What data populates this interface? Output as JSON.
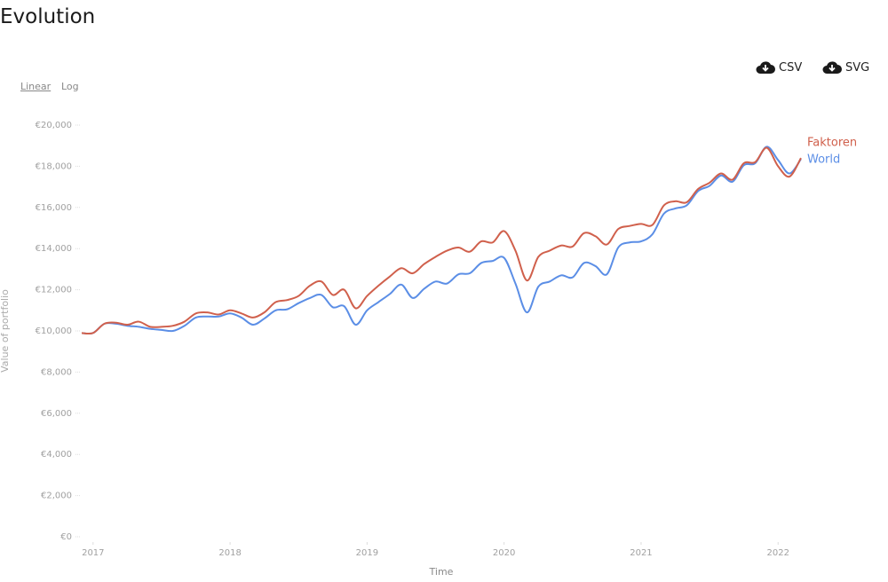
{
  "header": {
    "title": "Evolution"
  },
  "scale_options": [
    "Linear",
    "Log"
  ],
  "downloads": [
    "CSV",
    "SVG"
  ],
  "chart_data": {
    "type": "line",
    "x_label": "Time",
    "y_label": "Value of portfolio",
    "log_scale": false,
    "xlim": [
      2016.917,
      2022.167
    ],
    "xticks": [
      2017,
      2018,
      2019,
      2020,
      2021,
      2022
    ],
    "ylim": [
      0,
      20000
    ],
    "yticks": [
      {
        "value": 0,
        "label": "€0"
      },
      {
        "value": 2000,
        "label": "€2,000"
      },
      {
        "value": 4000,
        "label": "€4,000"
      },
      {
        "value": 6000,
        "label": "€6,000"
      },
      {
        "value": 8000,
        "label": "€8,000"
      },
      {
        "value": 10000,
        "label": "€10,000"
      },
      {
        "value": 12000,
        "label": "€12,000"
      },
      {
        "value": 14000,
        "label": "€14,000"
      },
      {
        "value": 16000,
        "label": "€16,000"
      },
      {
        "value": 18000,
        "label": "€18,000"
      },
      {
        "value": 20000,
        "label": "€20,000"
      }
    ],
    "x": [
      2016.917,
      2017,
      2017.083,
      2017.167,
      2017.25,
      2017.333,
      2017.417,
      2017.5,
      2017.583,
      2017.667,
      2017.75,
      2017.833,
      2017.917,
      2018,
      2018.083,
      2018.167,
      2018.25,
      2018.333,
      2018.417,
      2018.5,
      2018.583,
      2018.667,
      2018.75,
      2018.833,
      2018.917,
      2019,
      2019.083,
      2019.167,
      2019.25,
      2019.333,
      2019.417,
      2019.5,
      2019.583,
      2019.667,
      2019.75,
      2019.833,
      2019.917,
      2020,
      2020.083,
      2020.167,
      2020.25,
      2020.333,
      2020.417,
      2020.5,
      2020.583,
      2020.667,
      2020.75,
      2020.833,
      2020.917,
      2021,
      2021.083,
      2021.167,
      2021.25,
      2021.333,
      2021.417,
      2021.5,
      2021.583,
      2021.667,
      2021.75,
      2021.833,
      2021.917,
      2022,
      2022.083,
      2022.167
    ],
    "series": [
      {
        "name": "Faktoren",
        "color": "#d0604c",
        "values": [
          9900,
          9900,
          10350,
          10400,
          10300,
          10450,
          10200,
          10200,
          10250,
          10450,
          10850,
          10900,
          10800,
          11000,
          10850,
          10650,
          10900,
          11400,
          11500,
          11700,
          12200,
          12400,
          11750,
          12000,
          11100,
          11700,
          12200,
          12650,
          13050,
          12800,
          13250,
          13600,
          13900,
          14050,
          13850,
          14350,
          14300,
          14850,
          13900,
          12450,
          13600,
          13900,
          14150,
          14100,
          14750,
          14600,
          14200,
          14950,
          15100,
          15200,
          15150,
          16100,
          16300,
          16250,
          16900,
          17200,
          17650,
          17350,
          18150,
          18200,
          18900,
          18000,
          17500,
          18400
        ]
      },
      {
        "name": "World",
        "color": "#5b8ee6",
        "values": [
          9900,
          9900,
          10350,
          10350,
          10250,
          10200,
          10100,
          10050,
          10000,
          10250,
          10650,
          10700,
          10700,
          10850,
          10650,
          10300,
          10600,
          11000,
          11050,
          11350,
          11600,
          11750,
          11150,
          11200,
          10300,
          11000,
          11400,
          11800,
          12250,
          11600,
          12050,
          12400,
          12300,
          12750,
          12800,
          13300,
          13400,
          13550,
          12300,
          10900,
          12150,
          12400,
          12700,
          12600,
          13300,
          13150,
          12750,
          14050,
          14300,
          14350,
          14700,
          15700,
          15950,
          16100,
          16800,
          17050,
          17550,
          17250,
          18050,
          18150,
          18950,
          18300,
          17650,
          18350
        ]
      }
    ]
  }
}
